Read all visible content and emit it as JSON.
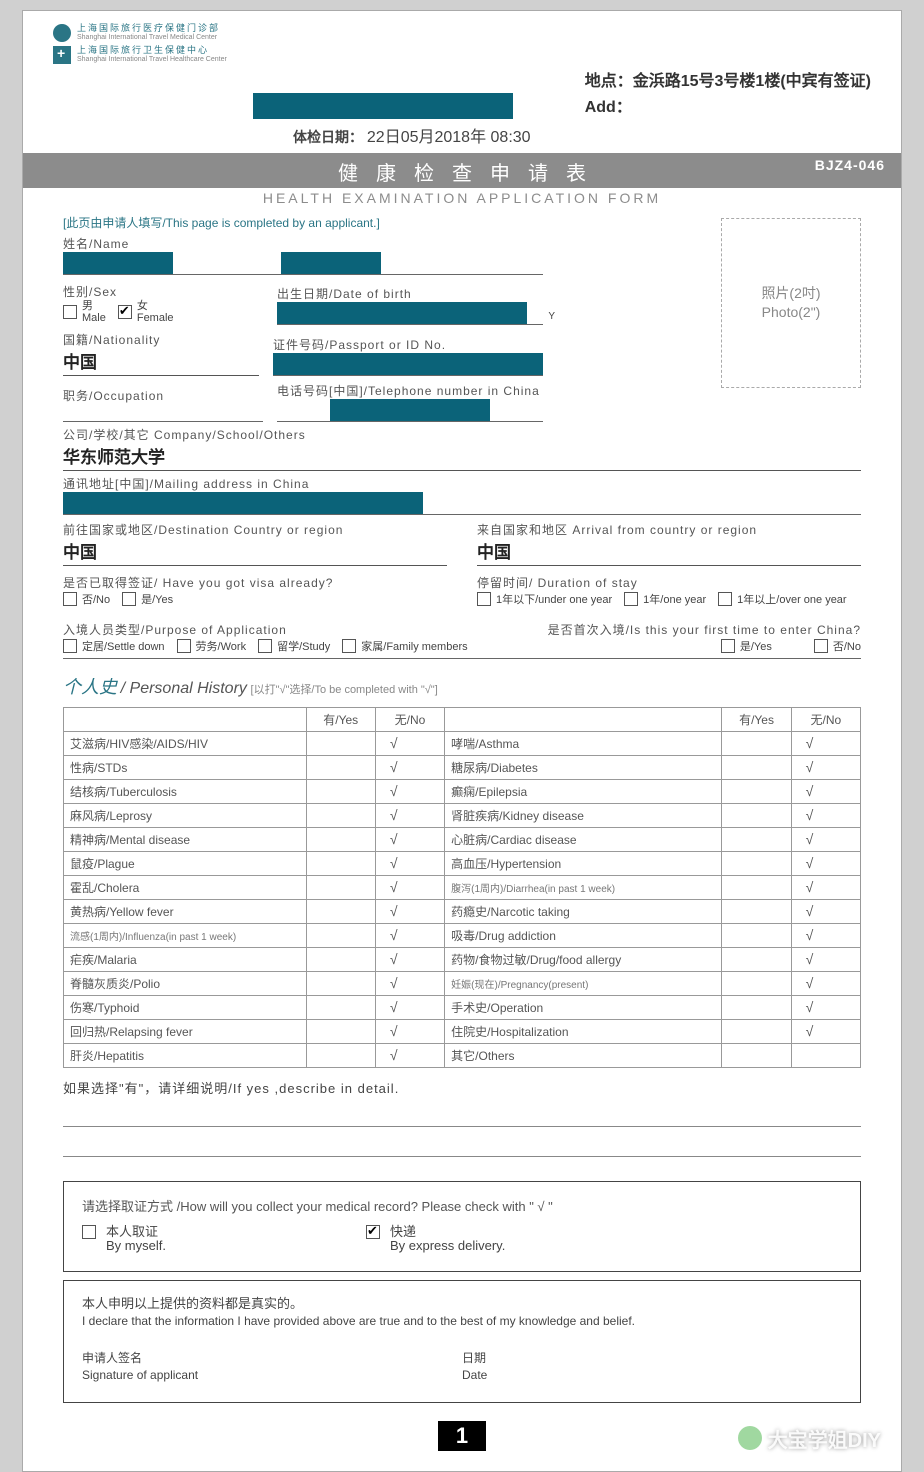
{
  "logos": {
    "line1_cn": "上海国际旅行医疗保健门诊部",
    "line1_en": "Shanghai International Travel Medical Center",
    "line2_cn": "上海国际旅行卫生保健中心",
    "line2_en": "Shanghai International Travel Healthcare Center"
  },
  "header": {
    "location_label": "地点：",
    "location_value": "金浜路15号3号楼1楼(中宾有签证)",
    "add_label": "Add：",
    "exam_date_label": "体检日期：",
    "exam_date_value": "22日05月2018年 08:30"
  },
  "title_bar": {
    "title_cn": "健康检查申请表",
    "form_code": "BJZ4-046",
    "title_en": "HEALTH EXAMINATION APPLICATION FORM"
  },
  "form": {
    "page_note": "[此页由申请人填写/This page is completed by an applicant.]",
    "name_label": "姓名/Name",
    "sex_label": "性别/Sex",
    "male": "男\nMale",
    "female": "女\nFemale",
    "dob_label": "出生日期/Date of birth",
    "dob_hint": "Y",
    "nationality_label": "国籍/Nationality",
    "nationality_value": "中国",
    "passport_label": "证件号码/Passport or ID No.",
    "occupation_label": "职务/Occupation",
    "telephone_label": "电话号码[中国]/Telephone  number in China",
    "company_label": "公司/学校/其它 Company/School/Others",
    "company_value": "华东师范大学",
    "mailing_label": "通讯地址[中国]/Mailing address in China",
    "dest_label": "前往国家或地区/Destination Country or region",
    "dest_value": "中国",
    "arrival_label": "来自国家和地区 Arrival from country or region",
    "arrival_value": "中国",
    "visa_label": "是否已取得签证/ Have you got visa already?",
    "no_label": "否/No",
    "yes_label": "是/Yes",
    "duration_label": "停留时间/ Duration of stay",
    "dur1": "1年以下/under one year",
    "dur2": "1年/one year",
    "dur3": "1年以上/over one year",
    "purpose_label": "入境人员类型/Purpose of Application",
    "p1": "定居/Settle down",
    "p2": "劳务/Work",
    "p3": "留学/Study",
    "p4": "家属/Family members",
    "first_time_label": "是否首次入境/Is this your first time to enter China?",
    "photo_label": "照片(2吋)\nPhoto(2\")"
  },
  "history": {
    "title_cn": "个人史",
    "title_en": "/ Personal History",
    "hint": "[以打\"√\"选择/To be completed  with  \"√\"]",
    "yes_h": "有/Yes",
    "no_h": "无/No",
    "left": [
      {
        "label": "艾滋病/HIV感染/AIDS/HIV",
        "no": "√"
      },
      {
        "label": "性病/STDs",
        "no": "√"
      },
      {
        "label": "结核病/Tuberculosis",
        "no": "√"
      },
      {
        "label": "麻风病/Leprosy",
        "no": "√"
      },
      {
        "label": "精神病/Mental disease",
        "no": "√"
      },
      {
        "label": "鼠疫/Plague",
        "no": "√"
      },
      {
        "label": "霍乱/Cholera",
        "no": "√"
      },
      {
        "label": "黄热病/Yellow fever",
        "no": "√"
      },
      {
        "label": "流感(1周内)/Influenza(in past 1 week)",
        "no": "√",
        "small": true
      },
      {
        "label": "疟疾/Malaria",
        "no": "√"
      },
      {
        "label": "脊髓灰质炎/Polio",
        "no": "√"
      },
      {
        "label": "伤寒/Typhoid",
        "no": "√"
      },
      {
        "label": "回归热/Relapsing fever",
        "no": "√"
      },
      {
        "label": "肝炎/Hepatitis",
        "no": "√"
      }
    ],
    "right": [
      {
        "label": "哮喘/Asthma",
        "no": "√"
      },
      {
        "label": "糖尿病/Diabetes",
        "no": "√"
      },
      {
        "label": "癫痫/Epilepsia",
        "no": "√"
      },
      {
        "label": "肾脏疾病/Kidney disease",
        "no": "√"
      },
      {
        "label": "心脏病/Cardiac disease",
        "no": "√"
      },
      {
        "label": "高血压/Hypertension",
        "no": "√"
      },
      {
        "label": "腹泻(1周内)/Diarrhea(in past 1 week)",
        "no": "√",
        "small": true
      },
      {
        "label": "药瘾史/Narcotic taking",
        "no": "√"
      },
      {
        "label": "吸毒/Drug addiction",
        "no": "√"
      },
      {
        "label": "药物/食物过敏/Drug/food allergy",
        "no": "√"
      },
      {
        "label": "妊娠(现在)/Pregnancy(present)",
        "no": "√",
        "small": true
      },
      {
        "label": "手术史/Operation",
        "no": "√"
      },
      {
        "label": "住院史/Hospitalization",
        "no": "√"
      },
      {
        "label": "其它/Others",
        "no": ""
      }
    ],
    "detail_label": "如果选择\"有\"，请详细说明/If yes ,describe in detail."
  },
  "collect": {
    "q": "请选择取证方式 /How will you collect your medical record? Please check with \" √ \"",
    "opt1": "本人取证\nBy myself.",
    "opt2": "快递\nBy express delivery."
  },
  "declare": {
    "cn": "本人申明以上提供的资料都是真实的。",
    "en": "I declare that the information I have provided above are true and to the best of my knowledge and belief.",
    "sig_label": "申请人签名\nSignature of applicant",
    "date_label": "日期\nDate"
  },
  "page_num": "1",
  "watermark": "大宝学姐DIY"
}
